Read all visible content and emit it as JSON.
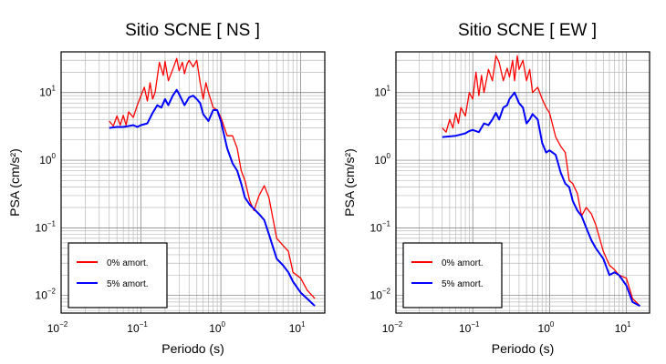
{
  "chart_data": [
    {
      "type": "line",
      "title": "Sitio SCNE [ NS ]",
      "xlabel": "Periodo (s)",
      "ylabel": "PSA (cm/s²)",
      "xscale": "log",
      "yscale": "log",
      "xlim": [
        0.01,
        20
      ],
      "ylim": [
        0.0055,
        40
      ],
      "xticks": [
        {
          "base": "10",
          "exp": "−2"
        },
        {
          "base": "10",
          "exp": "−1"
        },
        {
          "base": "10",
          "exp": "0"
        },
        {
          "base": "10",
          "exp": "1"
        }
      ],
      "yticks": [
        {
          "base": "10",
          "exp": "−2"
        },
        {
          "base": "10",
          "exp": "−1"
        },
        {
          "base": "10",
          "exp": "0"
        },
        {
          "base": "10",
          "exp": "1"
        }
      ],
      "grid": true,
      "legend_position": "bottom-left",
      "series": [
        {
          "name": "0% amort.",
          "color": "#ff0000",
          "x": [
            0.04,
            0.045,
            0.05,
            0.055,
            0.06,
            0.065,
            0.07,
            0.08,
            0.09,
            0.1,
            0.11,
            0.12,
            0.13,
            0.14,
            0.15,
            0.17,
            0.19,
            0.2,
            0.22,
            0.25,
            0.28,
            0.3,
            0.33,
            0.35,
            0.38,
            0.4,
            0.45,
            0.5,
            0.55,
            0.6,
            0.65,
            0.7,
            0.8,
            0.9,
            1.0,
            1.2,
            1.4,
            1.6,
            1.8,
            2.0,
            2.3,
            2.6,
            3.0,
            3.5,
            4.0,
            5.0,
            6.0,
            7.0,
            8.0,
            10.0,
            12.0,
            15.0
          ],
          "y": [
            3.8,
            3.2,
            4.5,
            3.3,
            4.6,
            3.3,
            5.2,
            4.3,
            6.5,
            9.0,
            12.0,
            7.5,
            14.0,
            8.0,
            10.0,
            28.0,
            18.0,
            29.0,
            15.0,
            22.0,
            32.0,
            21.0,
            28.0,
            19.0,
            27.0,
            30.0,
            24.0,
            30.0,
            14.0,
            8.0,
            14.0,
            10.0,
            6.0,
            5.5,
            4.3,
            2.3,
            2.3,
            1.5,
            0.7,
            0.5,
            0.25,
            0.18,
            0.3,
            0.42,
            0.28,
            0.07,
            0.055,
            0.045,
            0.022,
            0.018,
            0.012,
            0.009
          ]
        },
        {
          "name": "5% amort.",
          "color": "#0000ff",
          "x": [
            0.04,
            0.05,
            0.06,
            0.07,
            0.08,
            0.09,
            0.1,
            0.12,
            0.14,
            0.16,
            0.18,
            0.2,
            0.22,
            0.25,
            0.28,
            0.3,
            0.35,
            0.4,
            0.45,
            0.5,
            0.55,
            0.6,
            0.7,
            0.8,
            0.9,
            1.0,
            1.2,
            1.4,
            1.6,
            1.8,
            2.0,
            2.3,
            2.6,
            3.0,
            3.5,
            4.0,
            5.0,
            6.0,
            7.0,
            8.0,
            10.0,
            12.0,
            15.0
          ],
          "y": [
            3.0,
            3.1,
            3.1,
            3.2,
            3.3,
            3.1,
            3.3,
            3.5,
            5.0,
            6.5,
            6.0,
            8.0,
            6.5,
            9.0,
            11.0,
            9.5,
            6.5,
            8.5,
            9.0,
            8.0,
            7.0,
            4.8,
            3.8,
            5.5,
            5.5,
            3.8,
            1.5,
            0.9,
            0.7,
            0.45,
            0.28,
            0.22,
            0.19,
            0.16,
            0.13,
            0.08,
            0.035,
            0.028,
            0.022,
            0.016,
            0.011,
            0.009,
            0.007
          ]
        }
      ]
    },
    {
      "type": "line",
      "title": "Sitio SCNE [ EW ]",
      "xlabel": "Periodo (s)",
      "ylabel": "PSA (cm/s²)",
      "xscale": "log",
      "yscale": "log",
      "xlim": [
        0.01,
        20
      ],
      "ylim": [
        0.0055,
        40
      ],
      "xticks": [
        {
          "base": "10",
          "exp": "−2"
        },
        {
          "base": "10",
          "exp": "−1"
        },
        {
          "base": "10",
          "exp": "0"
        },
        {
          "base": "10",
          "exp": "1"
        }
      ],
      "yticks": [
        {
          "base": "10",
          "exp": "−2"
        },
        {
          "base": "10",
          "exp": "−1"
        },
        {
          "base": "10",
          "exp": "0"
        },
        {
          "base": "10",
          "exp": "1"
        }
      ],
      "grid": true,
      "legend_position": "bottom-left",
      "series": [
        {
          "name": "0% amort.",
          "color": "#ff0000",
          "x": [
            0.04,
            0.045,
            0.05,
            0.055,
            0.06,
            0.065,
            0.07,
            0.08,
            0.09,
            0.1,
            0.11,
            0.12,
            0.13,
            0.14,
            0.16,
            0.18,
            0.2,
            0.22,
            0.25,
            0.28,
            0.3,
            0.33,
            0.35,
            0.38,
            0.4,
            0.45,
            0.5,
            0.55,
            0.6,
            0.7,
            0.8,
            0.9,
            1.0,
            1.2,
            1.4,
            1.6,
            1.8,
            2.0,
            2.3,
            2.6,
            3.0,
            3.5,
            4.0,
            5.0,
            6.0,
            7.0,
            8.0,
            10.0,
            12.0,
            15.0
          ],
          "y": [
            3.0,
            2.6,
            4.0,
            3.0,
            5.0,
            3.5,
            6.0,
            4.5,
            10.0,
            8.0,
            20.0,
            9.0,
            18.0,
            10.0,
            22.0,
            15.0,
            35.0,
            28.0,
            15.0,
            23.0,
            17.0,
            30.0,
            15.0,
            35.0,
            22.0,
            30.0,
            15.0,
            22.0,
            10.0,
            12.0,
            8.0,
            6.0,
            5.0,
            2.2,
            1.6,
            1.3,
            0.5,
            0.45,
            0.32,
            0.15,
            0.2,
            0.16,
            0.11,
            0.045,
            0.028,
            0.024,
            0.02,
            0.018,
            0.009,
            0.007
          ]
        },
        {
          "name": "5% amort.",
          "color": "#0000ff",
          "x": [
            0.04,
            0.05,
            0.06,
            0.07,
            0.08,
            0.09,
            0.1,
            0.12,
            0.14,
            0.16,
            0.18,
            0.2,
            0.22,
            0.25,
            0.28,
            0.3,
            0.35,
            0.4,
            0.45,
            0.5,
            0.55,
            0.6,
            0.7,
            0.8,
            0.9,
            1.0,
            1.2,
            1.4,
            1.6,
            1.8,
            2.0,
            2.3,
            2.6,
            3.0,
            3.5,
            4.0,
            5.0,
            6.0,
            7.0,
            8.0,
            10.0,
            12.0,
            15.0
          ],
          "y": [
            2.2,
            2.25,
            2.3,
            2.4,
            2.5,
            2.7,
            2.8,
            2.6,
            3.5,
            3.3,
            4.0,
            5.0,
            4.0,
            6.0,
            6.5,
            8.0,
            10.0,
            7.0,
            6.0,
            3.5,
            4.0,
            4.8,
            4.0,
            1.8,
            1.3,
            1.4,
            1.2,
            0.65,
            0.45,
            0.4,
            0.25,
            0.18,
            0.15,
            0.1,
            0.065,
            0.05,
            0.035,
            0.02,
            0.022,
            0.02,
            0.014,
            0.008,
            0.007
          ]
        }
      ]
    }
  ]
}
